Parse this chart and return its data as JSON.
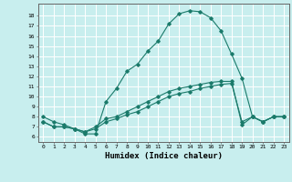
{
  "title": "",
  "xlabel": "Humidex (Indice chaleur)",
  "ylabel": "",
  "bg_color": "#c8eeee",
  "line_color": "#1a7a6a",
  "grid_color": "#ffffff",
  "xlim": [
    -0.5,
    23.5
  ],
  "ylim": [
    5.5,
    19.2
  ],
  "xticks": [
    0,
    1,
    2,
    3,
    4,
    5,
    6,
    7,
    8,
    9,
    10,
    11,
    12,
    13,
    14,
    15,
    16,
    17,
    18,
    19,
    20,
    21,
    22,
    23
  ],
  "yticks": [
    6,
    7,
    8,
    9,
    10,
    11,
    12,
    13,
    14,
    15,
    16,
    17,
    18
  ],
  "line1_x": [
    0,
    1,
    2,
    3,
    4,
    5,
    6,
    7,
    8,
    9,
    10,
    11,
    12,
    13,
    14,
    15,
    16,
    17,
    18,
    19,
    20,
    21,
    22,
    23
  ],
  "line1_y": [
    8.0,
    7.5,
    7.2,
    6.8,
    6.3,
    6.3,
    9.5,
    10.8,
    12.5,
    13.2,
    14.5,
    15.5,
    17.2,
    18.2,
    18.5,
    18.4,
    17.8,
    16.5,
    14.2,
    11.8,
    8.0,
    7.5,
    8.0,
    8.0
  ],
  "line2_x": [
    0,
    1,
    2,
    3,
    4,
    5,
    6,
    7,
    8,
    9,
    10,
    11,
    12,
    13,
    14,
    15,
    16,
    17,
    18,
    19,
    20,
    21,
    22,
    23
  ],
  "line2_y": [
    7.5,
    7.0,
    7.0,
    6.8,
    6.5,
    6.8,
    7.5,
    7.8,
    8.2,
    8.5,
    9.0,
    9.5,
    10.0,
    10.3,
    10.5,
    10.8,
    11.0,
    11.2,
    11.3,
    7.5,
    8.0,
    7.5,
    8.0,
    8.0
  ],
  "line3_x": [
    0,
    1,
    2,
    3,
    4,
    5,
    6,
    7,
    8,
    9,
    10,
    11,
    12,
    13,
    14,
    15,
    16,
    17,
    18,
    19,
    20,
    21,
    22,
    23
  ],
  "line3_y": [
    7.5,
    7.0,
    7.0,
    6.8,
    6.5,
    7.0,
    7.8,
    8.0,
    8.5,
    9.0,
    9.5,
    10.0,
    10.5,
    10.8,
    11.0,
    11.2,
    11.4,
    11.5,
    11.5,
    7.2,
    8.0,
    7.5,
    8.0,
    8.0
  ]
}
